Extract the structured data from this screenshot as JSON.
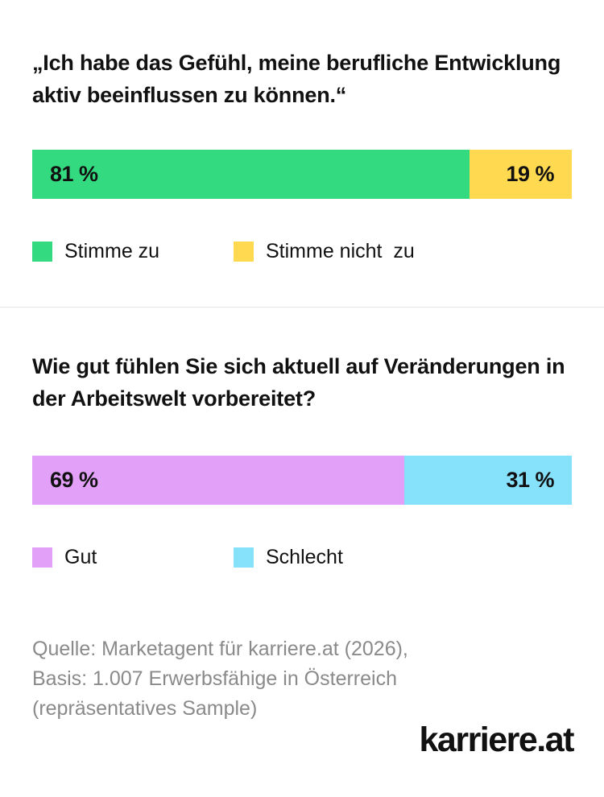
{
  "colors": {
    "agree": "#34da7f",
    "disagree": "#ffd94f",
    "good": "#e3a0f9",
    "bad": "#86e1fb"
  },
  "chart_data": [
    {
      "type": "bar",
      "title": "„Ich habe das Gefühl, meine berufliche Entwicklung aktiv beeinflussen zu können.“",
      "series": [
        {
          "name": "Stimme zu",
          "value": 81,
          "label": "81 %"
        },
        {
          "name": "Stimme nicht  zu",
          "value": 19,
          "label": "19 %"
        }
      ]
    },
    {
      "type": "bar",
      "title": "Wie gut fühlen Sie sich aktuell auf Veränderungen in der Arbeitswelt vorbereitet?",
      "series": [
        {
          "name": "Gut",
          "value": 69,
          "label": "69 %"
        },
        {
          "name": "Schlecht",
          "value": 31,
          "label": "31 %"
        }
      ]
    }
  ],
  "source": {
    "lines": [
      "Quelle: Marketagent für karriere.at (2026),",
      "Basis: 1.007 Erwerbsfähige in Österreich",
      "(repräsentatives Sample)"
    ]
  },
  "logo_text": "karriere.at"
}
